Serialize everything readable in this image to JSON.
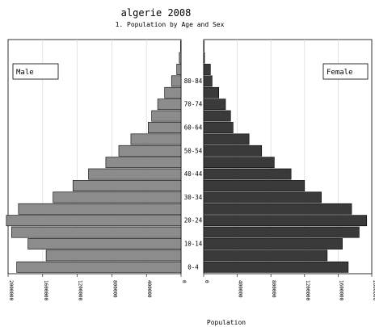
{
  "chart_data": {
    "type": "bar",
    "orientation": "horizontal-population-pyramid",
    "title": "algerie 2008",
    "subtitle": "1. Population by Age and Sex",
    "xlabel": "Population",
    "age_groups": [
      "0-4",
      "5-9",
      "10-14",
      "15-19",
      "20-24",
      "25-29",
      "30-34",
      "35-39",
      "40-44",
      "45-49",
      "50-54",
      "55-59",
      "60-64",
      "65-69",
      "70-74",
      "75-79",
      "80-84",
      "85-89",
      "90-94",
      "95+"
    ],
    "age_tick_labels": [
      "0-4",
      "10-14",
      "20-24",
      "30-34",
      "40-44",
      "50-54",
      "60-64",
      "70-74",
      "80-84"
    ],
    "series": [
      {
        "name": "Male",
        "color": "#8c8c8c",
        "values": [
          1900000,
          1560000,
          1770000,
          1960000,
          2020000,
          1880000,
          1480000,
          1250000,
          1070000,
          870000,
          720000,
          580000,
          380000,
          340000,
          270000,
          190000,
          110000,
          50000,
          20000,
          5000
        ]
      },
      {
        "name": "Female",
        "color": "#3a3a3a",
        "values": [
          1720000,
          1470000,
          1650000,
          1850000,
          1940000,
          1760000,
          1400000,
          1200000,
          1040000,
          840000,
          690000,
          540000,
          350000,
          320000,
          260000,
          180000,
          100000,
          80000,
          10000,
          5000
        ]
      }
    ],
    "male_axis_ticks": [
      "2000000",
      "1600000",
      "1200000",
      "800000",
      "400000",
      "0"
    ],
    "female_axis_ticks": [
      "0",
      "400000",
      "800000",
      "1200000",
      "1600000",
      "2000000"
    ],
    "xlim": [
      0,
      2000000
    ],
    "grid": true,
    "legend": [
      "Male",
      "Female"
    ]
  }
}
